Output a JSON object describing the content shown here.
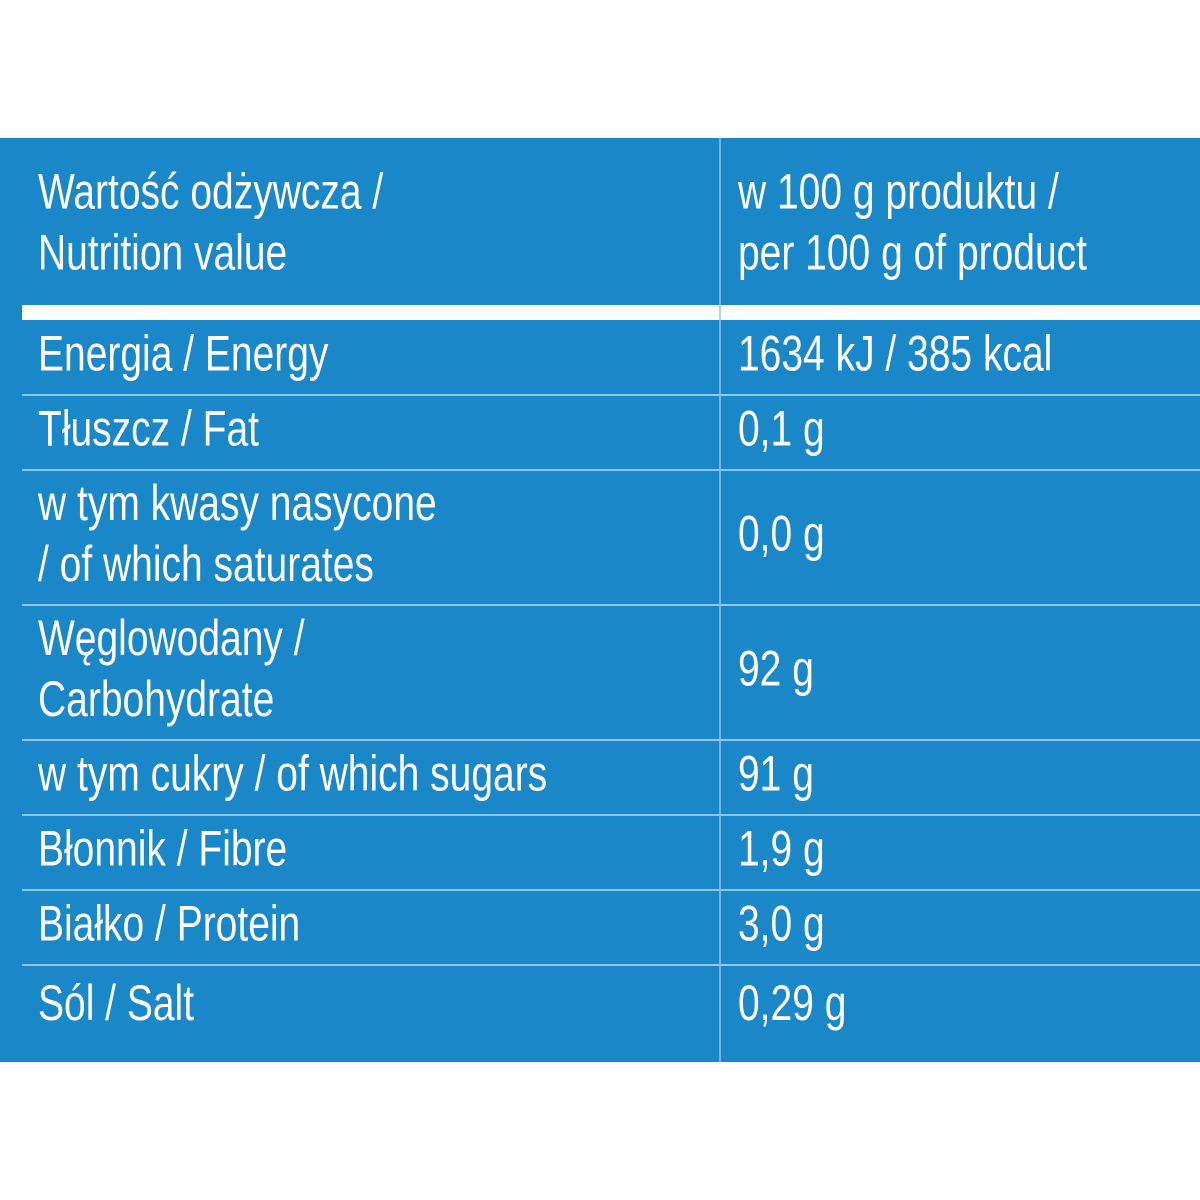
{
  "table": {
    "header": {
      "left": [
        "Wartość odżywcza /",
        "Nutrition value"
      ],
      "right": [
        "w 100 g produktu /",
        "per 100 g of product"
      ]
    },
    "rows": [
      {
        "label": [
          "Energia / Energy"
        ],
        "value": "1634 kJ / 385 kcal"
      },
      {
        "label": [
          "Tłuszcz / Fat"
        ],
        "value": "0,1 g"
      },
      {
        "label": [
          "w tym kwasy nasycone",
          "/ of which saturates"
        ],
        "value": "0,0 g"
      },
      {
        "label": [
          "Węglowodany /",
          "Carbohydrate"
        ],
        "value": "92 g"
      },
      {
        "label": [
          "w tym cukry / of which sugars"
        ],
        "value": "91 g"
      },
      {
        "label": [
          "Błonnik / Fibre"
        ],
        "value": "1,9 g"
      },
      {
        "label": [
          "Białko / Protein"
        ],
        "value": "3,0 g"
      },
      {
        "label": [
          "Sól / Salt"
        ],
        "value": "0,29 g"
      }
    ]
  }
}
